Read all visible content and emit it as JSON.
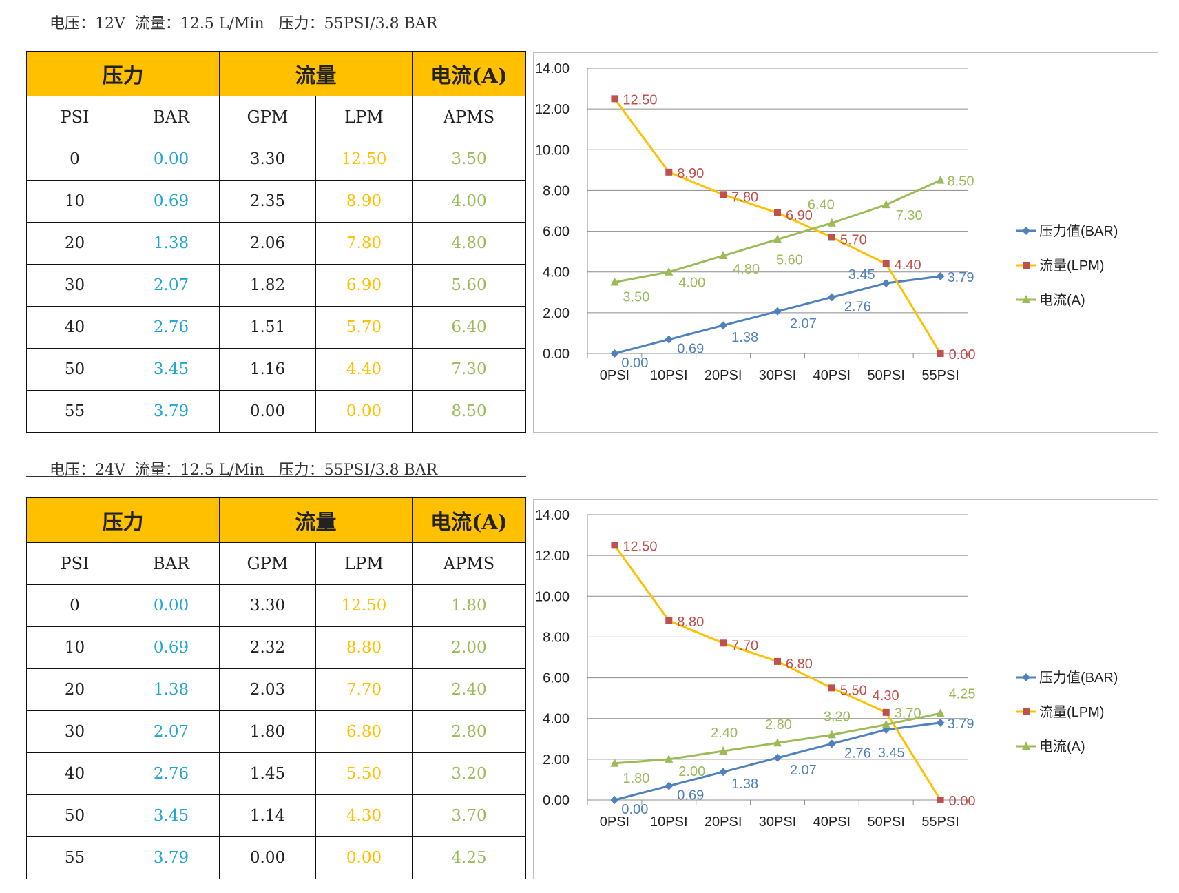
{
  "sections": [
    {
      "spec": {
        "voltage": "电压：12V",
        "flow": "流量：12.5 L/Min",
        "pressure": "压力：55PSI/3.8 BAR"
      },
      "table": {
        "groups": [
          "压力",
          "流量",
          "电流(A)"
        ],
        "columns": [
          "PSI",
          "BAR",
          "GPM",
          "LPM",
          "APMS"
        ],
        "rows": [
          [
            "0",
            "0.00",
            "3.30",
            "12.50",
            "3.50"
          ],
          [
            "10",
            "0.69",
            "2.35",
            "8.90",
            "4.00"
          ],
          [
            "20",
            "1.38",
            "2.06",
            "7.80",
            "4.80"
          ],
          [
            "30",
            "2.07",
            "1.82",
            "6.90",
            "5.60"
          ],
          [
            "40",
            "2.76",
            "1.51",
            "5.70",
            "6.40"
          ],
          [
            "50",
            "3.45",
            "1.16",
            "4.40",
            "7.30"
          ],
          [
            "55",
            "3.79",
            "0.00",
            "0.00",
            "8.50"
          ]
        ]
      },
      "chart_data": {
        "type": "line",
        "categories": [
          "0PSI",
          "10PSI",
          "20PSI",
          "30PSI",
          "40PSI",
          "50PSI",
          "55PSI"
        ],
        "ylim": [
          0,
          14
        ],
        "yticks": [
          "0.00",
          "2.00",
          "4.00",
          "6.00",
          "8.00",
          "10.00",
          "12.00",
          "14.00"
        ],
        "legend_position": "right",
        "grid": true,
        "series": [
          {
            "name": "压力值(BAR)",
            "color": "#4F81BD",
            "label_color": "#4F81BD",
            "marker": "diamond",
            "values": [
              0.0,
              0.69,
              1.38,
              2.07,
              2.76,
              3.45,
              3.79
            ],
            "labels": [
              "0.00",
              "0.69",
              "1.38",
              "2.07",
              "2.76",
              "3.45",
              "3.79"
            ]
          },
          {
            "name": "流量(LPM)",
            "color": "#FFC000",
            "label_color": "#C0504D",
            "marker": "square",
            "values": [
              12.5,
              8.9,
              7.8,
              6.9,
              5.7,
              4.4,
              0.0
            ],
            "labels": [
              "12.50",
              "8.90",
              "7.80",
              "6.90",
              "5.70",
              "4.40",
              "0.00"
            ]
          },
          {
            "name": "电流(A)",
            "color": "#9BBB59",
            "label_color": "#9BBB59",
            "marker": "triangle",
            "values": [
              3.5,
              4.0,
              4.8,
              5.6,
              6.4,
              7.3,
              8.5
            ],
            "labels": [
              "3.50",
              "4.00",
              "4.80",
              "5.60",
              "6.40",
              "7.30",
              "8.50"
            ]
          }
        ]
      }
    },
    {
      "spec": {
        "voltage": "电压：24V",
        "flow": "流量：12.5 L/Min",
        "pressure": "压力：55PSI/3.8 BAR"
      },
      "table": {
        "groups": [
          "压力",
          "流量",
          "电流(A)"
        ],
        "columns": [
          "PSI",
          "BAR",
          "GPM",
          "LPM",
          "APMS"
        ],
        "rows": [
          [
            "0",
            "0.00",
            "3.30",
            "12.50",
            "1.80"
          ],
          [
            "10",
            "0.69",
            "2.32",
            "8.80",
            "2.00"
          ],
          [
            "20",
            "1.38",
            "2.03",
            "7.70",
            "2.40"
          ],
          [
            "30",
            "2.07",
            "1.80",
            "6.80",
            "2.80"
          ],
          [
            "40",
            "2.76",
            "1.45",
            "5.50",
            "3.20"
          ],
          [
            "50",
            "3.45",
            "1.14",
            "4.30",
            "3.70"
          ],
          [
            "55",
            "3.79",
            "0.00",
            "0.00",
            "4.25"
          ]
        ]
      },
      "chart_data": {
        "type": "line",
        "categories": [
          "0PSI",
          "10PSI",
          "20PSI",
          "30PSI",
          "40PSI",
          "50PSI",
          "55PSI"
        ],
        "ylim": [
          0,
          14
        ],
        "yticks": [
          "0.00",
          "2.00",
          "4.00",
          "6.00",
          "8.00",
          "10.00",
          "12.00",
          "14.00"
        ],
        "legend_position": "right",
        "grid": true,
        "series": [
          {
            "name": "压力值(BAR)",
            "color": "#4F81BD",
            "label_color": "#4F81BD",
            "marker": "diamond",
            "values": [
              0.0,
              0.69,
              1.38,
              2.07,
              2.76,
              3.45,
              3.79
            ],
            "labels": [
              "0.00",
              "0.69",
              "1.38",
              "2.07",
              "2.76",
              "3.45",
              "3.79"
            ]
          },
          {
            "name": "流量(LPM)",
            "color": "#FFC000",
            "label_color": "#C0504D",
            "marker": "square",
            "values": [
              12.5,
              8.8,
              7.7,
              6.8,
              5.5,
              4.3,
              0.0
            ],
            "labels": [
              "12.50",
              "8.80",
              "7.70",
              "6.80",
              "5.50",
              "4.30",
              "0.00"
            ]
          },
          {
            "name": "电流(A)",
            "color": "#9BBB59",
            "label_color": "#9BBB59",
            "marker": "triangle",
            "values": [
              1.8,
              2.0,
              2.4,
              2.8,
              3.2,
              3.7,
              4.25
            ],
            "labels": [
              "1.80",
              "2.00",
              "2.40",
              "2.80",
              "3.20",
              "3.70",
              "4.25"
            ]
          }
        ]
      }
    }
  ]
}
